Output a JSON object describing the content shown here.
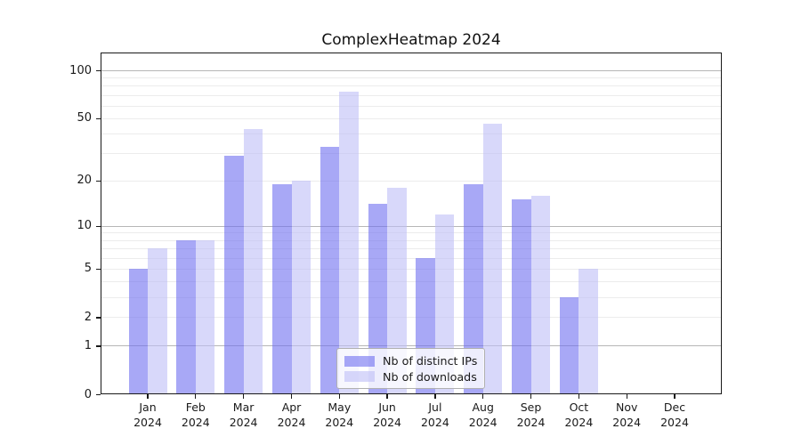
{
  "chart_data": {
    "type": "bar",
    "title": "ComplexHeatmap 2024",
    "year": "2024",
    "categories": [
      "Jan",
      "Feb",
      "Mar",
      "Apr",
      "May",
      "Jun",
      "Jul",
      "Aug",
      "Sep",
      "Oct",
      "Nov",
      "Dec"
    ],
    "series": [
      {
        "name": "Nb of distinct IPs",
        "color": "rgba(110,110,240,0.6)",
        "values": [
          5,
          8,
          29,
          19,
          33,
          14,
          6,
          19,
          15,
          3,
          0,
          0
        ]
      },
      {
        "name": "Nb of downloads",
        "color": "rgba(190,190,247,0.6)",
        "values": [
          7,
          8,
          43,
          20,
          74,
          18,
          12,
          46,
          16,
          5,
          0,
          0
        ]
      }
    ],
    "yscale": "log1p",
    "ylim": [
      0,
      110
    ],
    "y_tick_values": [
      0,
      1,
      2,
      5,
      10,
      20,
      50,
      100
    ],
    "grid_major": [
      1,
      10,
      100
    ],
    "grid_minor": [
      2,
      3,
      4,
      5,
      6,
      7,
      8,
      9,
      20,
      30,
      40,
      50,
      60,
      70,
      80,
      90
    ],
    "legend_position": "bottom-center",
    "grid_on": true,
    "colors": {
      "major_grid": "#b6b6b6",
      "minor_grid": "#ececec",
      "axis": "#1a1a1a"
    }
  }
}
